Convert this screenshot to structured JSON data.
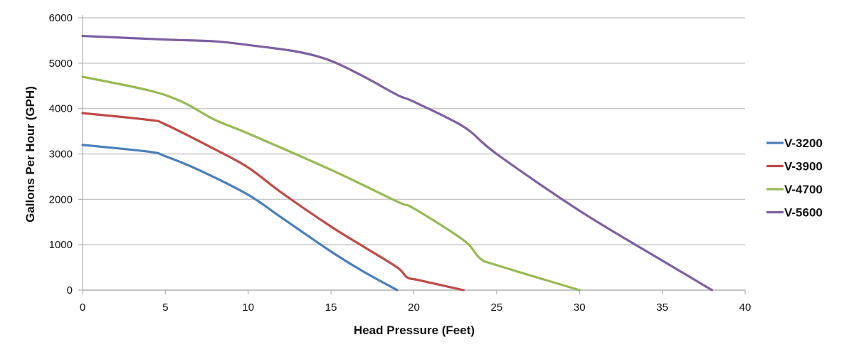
{
  "chart_data": {
    "type": "line",
    "title": "",
    "xlabel": "Head Pressure (Feet)",
    "ylabel": "Gallons Per Hour (GPH)",
    "xlim": [
      0,
      40
    ],
    "ylim": [
      0,
      6000
    ],
    "xticks": [
      0,
      5,
      10,
      15,
      20,
      25,
      30,
      35,
      40
    ],
    "yticks": [
      0,
      1000,
      2000,
      3000,
      4000,
      5000,
      6000
    ],
    "grid": "horizontal",
    "legend_position": "right",
    "series": [
      {
        "name": "V-3200",
        "color": "#4a7ebb",
        "x": [
          0,
          4,
          5,
          7,
          10,
          12,
          15,
          17,
          19
        ],
        "y": [
          3200,
          3050,
          2950,
          2650,
          2100,
          1600,
          850,
          400,
          0
        ]
      },
      {
        "name": "V-3900",
        "color": "#be4b48",
        "x": [
          0,
          4,
          5,
          8,
          10,
          12,
          15,
          17,
          19,
          19.6,
          20.3,
          23
        ],
        "y": [
          3900,
          3750,
          3650,
          3100,
          2700,
          2150,
          1400,
          950,
          500,
          280,
          220,
          0
        ]
      },
      {
        "name": "V-4700",
        "color": "#98b954",
        "x": [
          0,
          4,
          6,
          8,
          10,
          15,
          19,
          20,
          23,
          24,
          25,
          30
        ],
        "y": [
          4700,
          4400,
          4150,
          3750,
          3450,
          2650,
          1950,
          1800,
          1100,
          700,
          550,
          0
        ]
      },
      {
        "name": "V-5600",
        "color": "#7d60a0",
        "x": [
          0,
          5,
          8,
          10,
          13,
          15,
          17,
          19,
          20,
          23,
          25,
          30,
          35,
          38
        ],
        "y": [
          5600,
          5520,
          5480,
          5400,
          5250,
          5050,
          4700,
          4300,
          4150,
          3600,
          3000,
          1750,
          650,
          0
        ]
      }
    ]
  }
}
